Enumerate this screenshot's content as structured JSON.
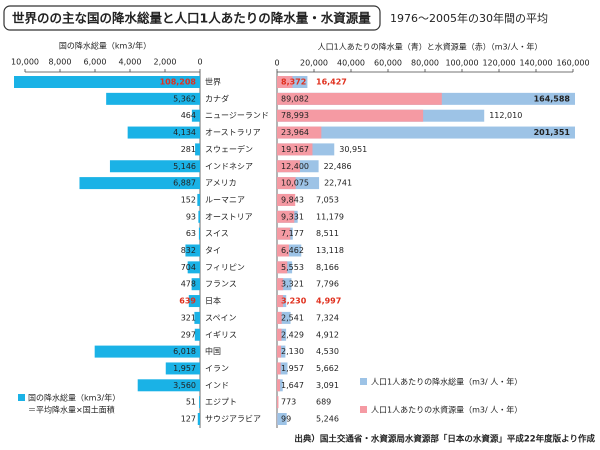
{
  "header": {
    "title": "世界のの主な国の降水総量と人口1人あたりの降水量・水資源量",
    "subtitle": "1976〜2005年の30年間の平均"
  },
  "source": "出典）国土交通省・水資源局水資源部「日本の水資源」平成22年度版より作成",
  "highlight_rows": [
    0,
    13
  ],
  "highlight_color": "#e0301e",
  "chart_data": [
    {
      "type": "hbar-left",
      "xlabel": "国の降水総量（km3/年）",
      "categories": [
        "世界",
        "カナダ",
        "ニュージーランド",
        "オーストラリア",
        "スウェーデン",
        "インドネシア",
        "アメリカ",
        "ルーマニア",
        "オーストリア",
        "スイス",
        "タイ",
        "フィリピン",
        "フランス",
        "日本",
        "スペイン",
        "イギリス",
        "中国",
        "イラン",
        "インド",
        "エジプト",
        "サウジアラビア"
      ],
      "series": [
        {
          "name": "国の降水総量（km3/年）",
          "note": "＝平均降水量×国土面積",
          "color": "#1ab2e6",
          "values": [
            108208,
            5362,
            464,
            4134,
            281,
            5146,
            6887,
            152,
            93,
            63,
            832,
            704,
            478,
            639,
            321,
            297,
            6018,
            1957,
            3560,
            51,
            127
          ],
          "value_labels": [
            "108,208",
            "5,362",
            "464",
            "4,134",
            "281",
            "5,146",
            "6,887",
            "152",
            "93",
            "63",
            "832",
            "704",
            "478",
            "639",
            "321",
            "297",
            "6,018",
            "1,957",
            "3,560",
            "51",
            "127"
          ]
        }
      ],
      "xlim": [
        0,
        10000
      ],
      "xticks": [
        {
          "value": 10000,
          "label": "10,000"
        },
        {
          "value": 8000,
          "label": "8,000"
        },
        {
          "value": 6000,
          "label": "6,000"
        },
        {
          "value": 4000,
          "label": "4,000"
        },
        {
          "value": 2000,
          "label": "2,000"
        },
        0
      ]
    },
    {
      "type": "hbar-right",
      "xlabel": "人口1人あたりの降水量（青）と水資源量（赤）（m3/人・年）",
      "series": [
        {
          "name": "人口1人あたりの降水総量（m3/ 人・年）",
          "color": "#9dc3e6",
          "values": [
            16427,
            164588,
            112010,
            201351,
            30951,
            22486,
            22741,
            7053,
            11179,
            8511,
            13118,
            8166,
            7796,
            4997,
            7324,
            4912,
            4530,
            5662,
            3091,
            689,
            5246
          ],
          "value_labels": [
            "16,427",
            "164,588",
            "112,010",
            "201,351",
            "30,951",
            "22,486",
            "22,741",
            "7,053",
            "11,179",
            "8,511",
            "13,118",
            "8,166",
            "7,796",
            "4,997",
            "7,324",
            "4,912",
            "4,530",
            "5,662",
            "3,091",
            "689",
            "5,246"
          ]
        },
        {
          "name": "人口1人あたりの水資源量（m3/ 人・年）",
          "color": "#f59aa3",
          "values": [
            8372,
            89082,
            78993,
            23964,
            19167,
            12400,
            10075,
            9843,
            9331,
            7177,
            6462,
            5553,
            3321,
            3230,
            2541,
            2429,
            2130,
            1957,
            1647,
            773,
            99
          ],
          "value_labels": [
            "8,372",
            "89,082",
            "78,993",
            "23,964",
            "19,167",
            "12,400",
            "10,075",
            "9,843",
            "9,331",
            "7,177",
            "6,462",
            "5,553",
            "3,321",
            "3,230",
            "2,541",
            "2,429",
            "2,130",
            "1,957",
            "1,647",
            "773",
            "99"
          ]
        }
      ],
      "xlim": [
        0,
        160000
      ],
      "xticks": [
        0,
        {
          "value": 20000,
          "label": "20,000"
        },
        {
          "value": 40000,
          "label": "40,000"
        },
        {
          "value": 60000,
          "label": "60,000"
        },
        {
          "value": 80000,
          "label": "80,000"
        },
        {
          "value": 100000,
          "label": "100,000"
        },
        {
          "value": 120000,
          "label": "120,000"
        },
        {
          "value": 140000,
          "label": "140,000"
        },
        {
          "value": 160000,
          "label": "160,000"
        }
      ]
    }
  ]
}
